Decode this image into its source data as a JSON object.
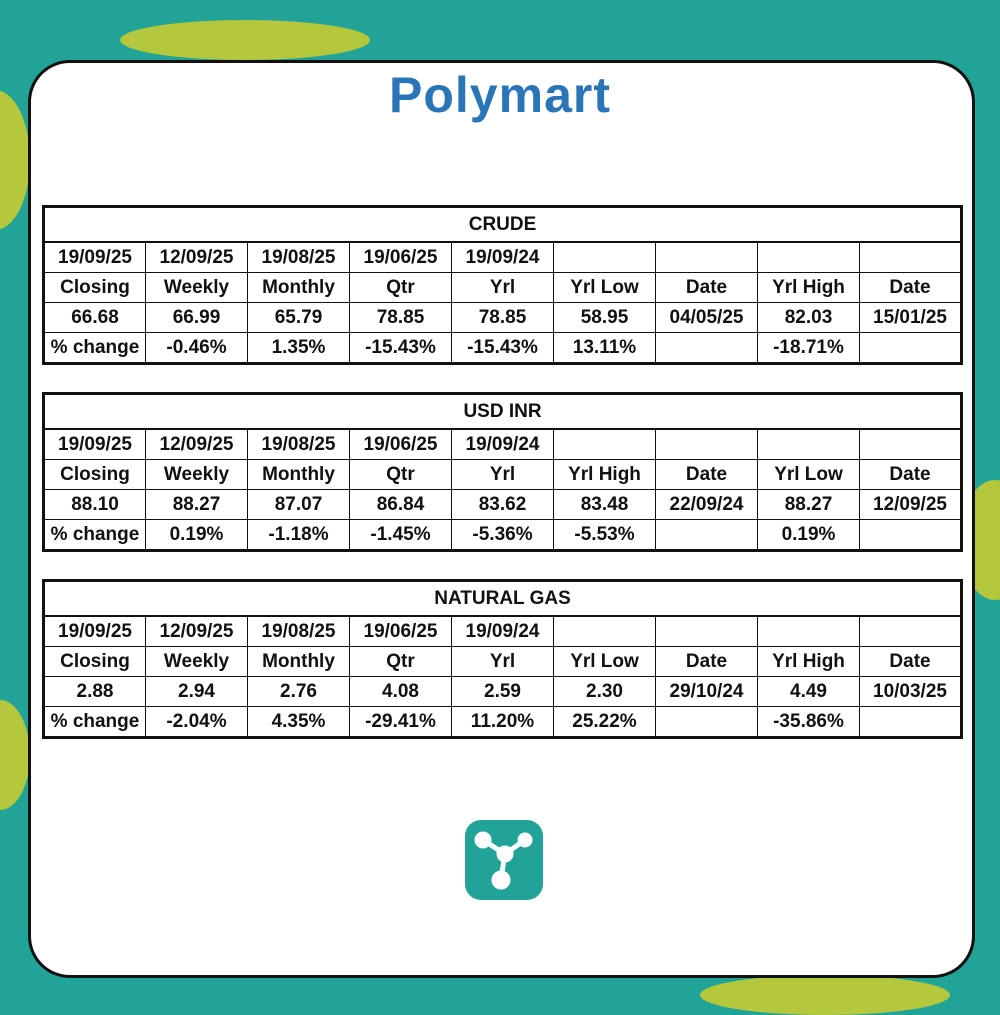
{
  "header": {
    "brand": "Polymart"
  },
  "tables": [
    {
      "title": "CRUDE",
      "rows": [
        [
          "19/09/25",
          "12/09/25",
          "19/08/25",
          "19/06/25",
          "19/09/24",
          null,
          null,
          null,
          null
        ],
        [
          "Closing",
          "Weekly",
          "Monthly",
          "Qtr",
          "Yrl",
          "Yrl Low",
          "Date",
          "Yrl High",
          "Date"
        ],
        [
          "66.68",
          "66.99",
          "65.79",
          "78.85",
          "78.85",
          "58.95",
          "04/05/25",
          "82.03",
          "15/01/25"
        ],
        [
          "% change",
          "-0.46%",
          "1.35%",
          "-15.43%",
          "-15.43%",
          "13.11%",
          null,
          "-18.71%",
          null
        ]
      ]
    },
    {
      "title": "USD INR",
      "rows": [
        [
          "19/09/25",
          "12/09/25",
          "19/08/25",
          "19/06/25",
          "19/09/24",
          null,
          null,
          null,
          null
        ],
        [
          "Closing",
          "Weekly",
          "Monthly",
          "Qtr",
          "Yrl",
          "Yrl High",
          "Date",
          "Yrl Low",
          "Date"
        ],
        [
          "88.10",
          "88.27",
          "87.07",
          "86.84",
          "83.62",
          "83.48",
          "22/09/24",
          "88.27",
          "12/09/25"
        ],
        [
          "% change",
          "0.19%",
          "-1.18%",
          "-1.45%",
          "-5.36%",
          "-5.53%",
          null,
          "0.19%",
          null
        ]
      ]
    },
    {
      "title": "NATURAL GAS",
      "rows": [
        [
          "19/09/25",
          "12/09/25",
          "19/08/25",
          "19/06/25",
          "19/09/24",
          null,
          null,
          null,
          null
        ],
        [
          "Closing",
          "Weekly",
          "Monthly",
          "Qtr",
          "Yrl",
          "Yrl Low",
          "Date",
          "Yrl High",
          "Date"
        ],
        [
          "2.88",
          "2.94",
          "2.76",
          "4.08",
          "2.59",
          "2.30",
          "29/10/24",
          "4.49",
          "10/03/25"
        ],
        [
          "% change",
          "-2.04%",
          "4.35%",
          "-29.41%",
          "11.20%",
          "25.22%",
          null,
          "-35.86%",
          null
        ]
      ]
    }
  ]
}
